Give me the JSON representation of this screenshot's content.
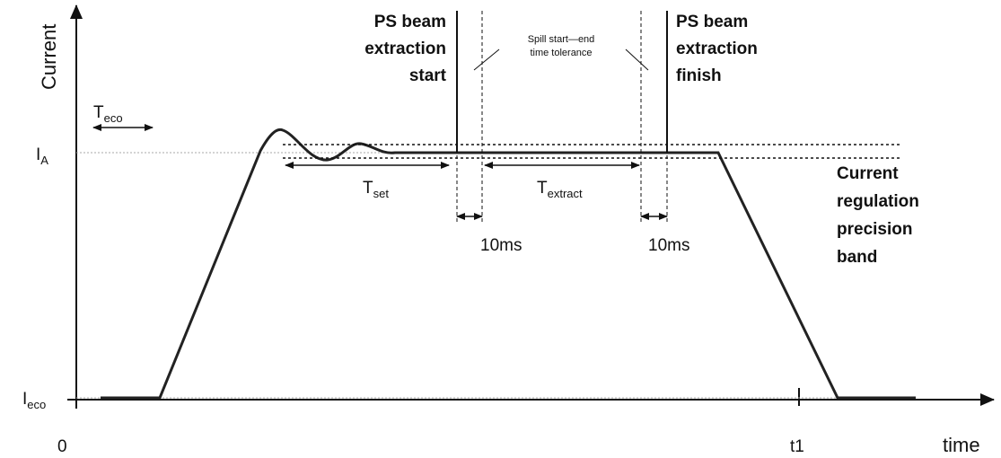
{
  "axes": {
    "y_label": "Current",
    "x_label": "time",
    "origin": "0",
    "x_tick": "t1"
  },
  "levels": {
    "high": {
      "base": "I",
      "sub": "A"
    },
    "low": {
      "base": "I",
      "sub": "eco"
    }
  },
  "markers": {
    "start": [
      "PS beam",
      "extraction",
      "start"
    ],
    "finish": [
      "PS beam",
      "extraction",
      "finish"
    ]
  },
  "tolerance": [
    "Spill start—end",
    "time tolerance"
  ],
  "band": [
    "Current",
    "regulation",
    "precision",
    "band"
  ],
  "intervals": {
    "set": {
      "base": "T",
      "sub": "set"
    },
    "extract": {
      "base": "T",
      "sub": "extract"
    },
    "eco": {
      "base": "T",
      "sub": "eco"
    },
    "gap_start": "10ms",
    "gap_finish": "10ms"
  }
}
